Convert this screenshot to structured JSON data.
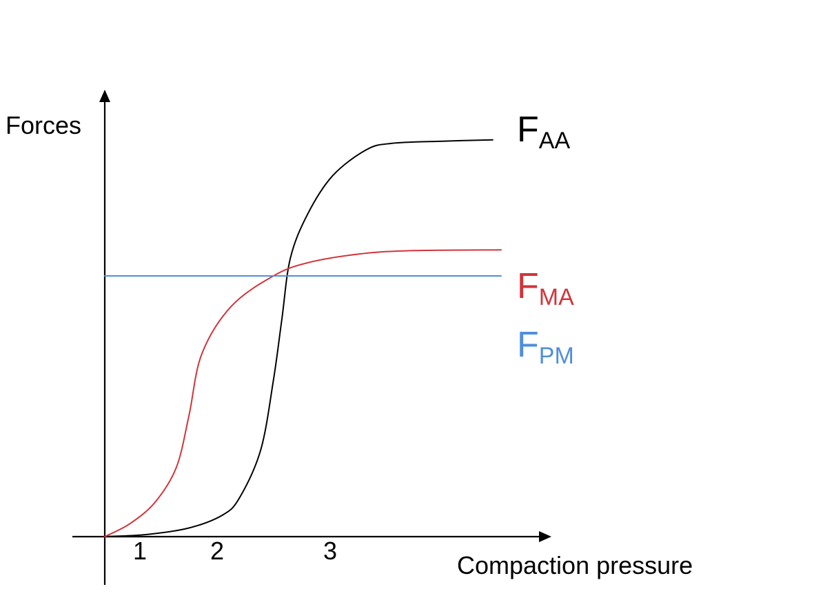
{
  "chart_data": {
    "type": "line",
    "ylabel": "Forces",
    "xlabel": "Compaction pressure",
    "x_ticks": [
      {
        "value": 1,
        "label": "1"
      },
      {
        "value": 2,
        "label": "2"
      },
      {
        "value": 3,
        "label": "3"
      }
    ],
    "xlim": [
      0,
      4.7
    ],
    "ylim": [
      0,
      100
    ],
    "grid": false,
    "legend": "right-end-labels",
    "series": [
      {
        "name": "F_AA",
        "label_main": "F",
        "label_sub": "AA",
        "color": "#000000",
        "points": [
          [
            0.0,
            0.0
          ],
          [
            0.5,
            0.5
          ],
          [
            1.0,
            2.0
          ],
          [
            1.4,
            5.0
          ],
          [
            1.6,
            9.0
          ],
          [
            1.85,
            20.0
          ],
          [
            2.0,
            36.0
          ],
          [
            2.1,
            50.0
          ],
          [
            2.2,
            64.0
          ],
          [
            2.4,
            74.0
          ],
          [
            2.7,
            83.0
          ],
          [
            3.1,
            89.0
          ],
          [
            3.4,
            90.5
          ],
          [
            4.0,
            91.0
          ],
          [
            4.6,
            91.3
          ]
        ]
      },
      {
        "name": "F_MA",
        "label_main": "F",
        "label_sub": "MA",
        "color": "#d1343a",
        "points": [
          [
            0.0,
            0.0
          ],
          [
            0.3,
            3.0
          ],
          [
            0.6,
            8.0
          ],
          [
            0.85,
            16.0
          ],
          [
            1.0,
            28.0
          ],
          [
            1.15,
            42.0
          ],
          [
            1.5,
            53.0
          ],
          [
            2.0,
            60.0
          ],
          [
            2.4,
            63.0
          ],
          [
            3.0,
            65.0
          ],
          [
            3.6,
            65.8
          ],
          [
            4.7,
            66.0
          ]
        ]
      },
      {
        "name": "F_PM",
        "label_main": "F",
        "label_sub": "PM",
        "color": "#4f8fdc",
        "points": [
          [
            0.0,
            60.0
          ],
          [
            4.7,
            60.0
          ]
        ]
      }
    ]
  }
}
